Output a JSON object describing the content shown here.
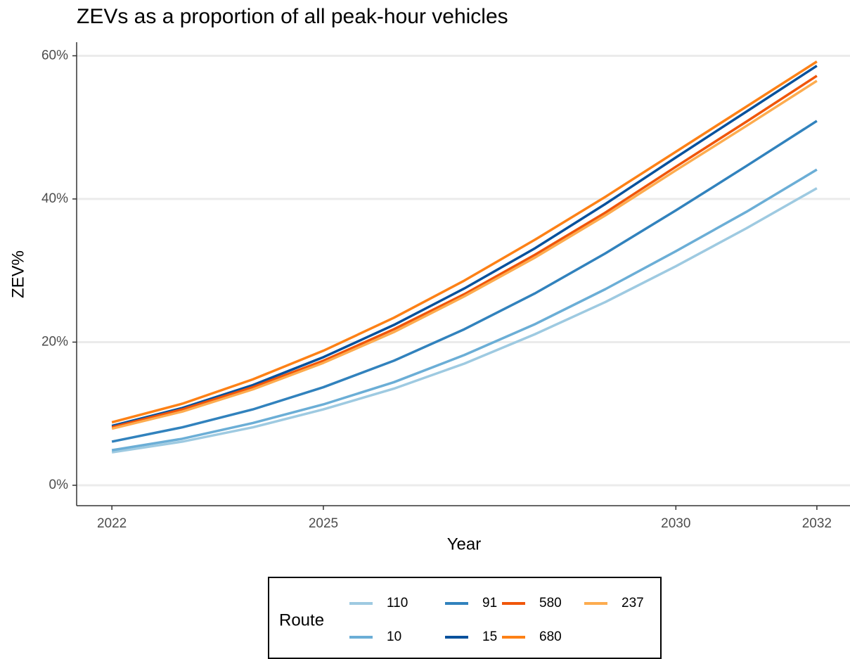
{
  "chart_data": {
    "type": "line",
    "title": "ZEVs as a proportion of all peak-hour vehicles",
    "x_label": "Year",
    "y_label": "ZEV%",
    "x": [
      2022,
      2023,
      2024,
      2025,
      2026,
      2027,
      2028,
      2029,
      2030,
      2031,
      2032
    ],
    "series": [
      {
        "name": "110",
        "color": "#9ecae1",
        "values": [
          4.6,
          6.1,
          8.1,
          10.6,
          13.5,
          17.0,
          21.1,
          25.6,
          30.6,
          35.9,
          41.5
        ]
      },
      {
        "name": "10",
        "color": "#6baed6",
        "values": [
          4.9,
          6.5,
          8.7,
          11.3,
          14.4,
          18.2,
          22.5,
          27.4,
          32.7,
          38.2,
          44.1
        ]
      },
      {
        "name": "91",
        "color": "#3182bd",
        "values": [
          6.1,
          8.1,
          10.6,
          13.7,
          17.4,
          21.8,
          26.8,
          32.4,
          38.4,
          44.6,
          50.9
        ]
      },
      {
        "name": "15",
        "color": "#08519c",
        "values": [
          8.3,
          10.8,
          14.0,
          17.9,
          22.4,
          27.5,
          33.1,
          39.3,
          45.8,
          52.2,
          58.6
        ]
      },
      {
        "name": "580",
        "color": "#f0560a",
        "values": [
          8.1,
          10.6,
          13.7,
          17.4,
          21.8,
          26.7,
          32.2,
          38.1,
          44.5,
          50.8,
          57.2
        ]
      },
      {
        "name": "680",
        "color": "#fd8116",
        "values": [
          8.8,
          11.4,
          14.8,
          18.8,
          23.4,
          28.6,
          34.3,
          40.3,
          46.6,
          52.9,
          59.2
        ]
      },
      {
        "name": "237",
        "color": "#fdac4f",
        "values": [
          7.9,
          10.3,
          13.4,
          17.1,
          21.4,
          26.4,
          31.8,
          37.7,
          44.0,
          50.2,
          56.5
        ]
      }
    ],
    "legend_title": "Route",
    "legend_position": "bottom",
    "xlim": [
      2021.5,
      2032.47
    ],
    "xticks": [
      2022,
      2025,
      2030,
      2032
    ],
    "ylim": [
      -2.85,
      61.9
    ],
    "yticks": [
      {
        "value": 0,
        "label": "0%"
      },
      {
        "value": 20,
        "label": "20%"
      },
      {
        "value": 40,
        "label": "40%"
      },
      {
        "value": 60,
        "label": "60%"
      }
    ],
    "grid": true
  }
}
